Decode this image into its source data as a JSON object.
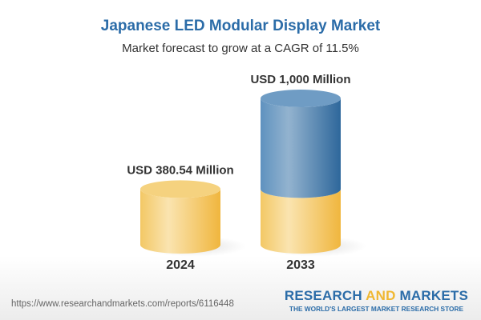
{
  "title": "Japanese LED Modular Display Market",
  "subtitle": "Market forecast to grow at a CAGR of 11.5%",
  "url": "https://www.researchandmarkets.com/reports/6116448",
  "logo": {
    "part1": "RESEARCH ",
    "part2": "AND",
    "part3": " MARKETS",
    "tagline": "THE WORLD'S LARGEST MARKET RESEARCH STORE"
  },
  "colors": {
    "title": "#2b6ca8",
    "base_cylinder": "#f2c55c",
    "growth_cylinder": "#5b8fbd"
  },
  "chart_data": {
    "type": "bar",
    "style": "3d-cylinder",
    "categories": [
      "2024",
      "2033"
    ],
    "values": [
      380.54,
      1000
    ],
    "data_labels": [
      "USD 380.54 Million",
      "USD 1,000 Million"
    ],
    "unit": "USD Million",
    "ylim": [
      0,
      1000
    ],
    "grid": false
  }
}
